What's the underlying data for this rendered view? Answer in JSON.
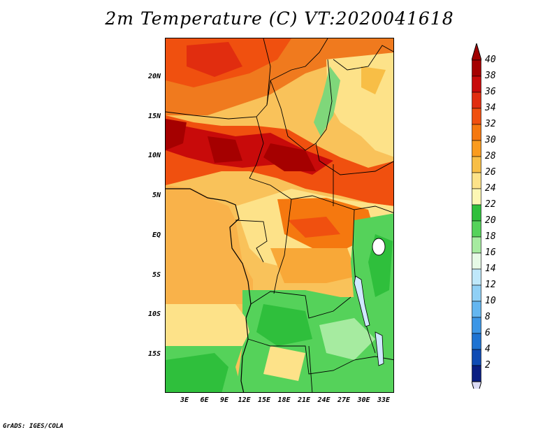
{
  "title": "2m Temperature (C) VT:2020041618",
  "credit": "GrADS: IGES/COLA",
  "lat_labels": [
    "20N",
    "15N",
    "10N",
    "5N",
    "EQ",
    "5S",
    "10S",
    "15S"
  ],
  "lon_labels": [
    "3E",
    "6E",
    "9E",
    "12E",
    "15E",
    "18E",
    "21E",
    "24E",
    "27E",
    "30E",
    "33E"
  ],
  "colorbar": {
    "labels": [
      "40",
      "38",
      "36",
      "34",
      "32",
      "30",
      "28",
      "26",
      "24",
      "22",
      "20",
      "18",
      "16",
      "14",
      "12",
      "10",
      "8",
      "6",
      "4",
      "2"
    ],
    "colors": [
      "#a50000",
      "#c80a0a",
      "#e12d0f",
      "#f0500f",
      "#f5780f",
      "#fa9b1e",
      "#f8be46",
      "#fde289",
      "#fdf7b4",
      "#2fbf3c",
      "#55d25a",
      "#a6eba0",
      "#e6fae6",
      "#bfe8fa",
      "#90d0f5",
      "#64b6f0",
      "#3c96e6",
      "#1e73d2",
      "#0f4bb4",
      "#0a1e82"
    ],
    "over_color": "#a00000",
    "under_color": "#dcdcf5"
  }
}
